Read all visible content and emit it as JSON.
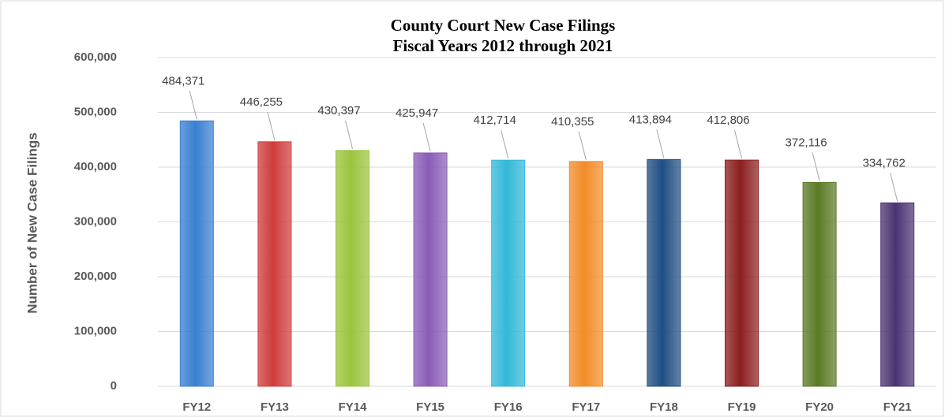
{
  "chart_data": {
    "type": "bar",
    "title": "County Court New Case Filings",
    "subtitle": "Fiscal Years 2012 through 2021",
    "y_label": "Number of New Case Filings",
    "categories": [
      "FY12",
      "FY13",
      "FY14",
      "FY15",
      "FY16",
      "FY17",
      "FY18",
      "FY19",
      "FY20",
      "FY21"
    ],
    "values": [
      484371,
      446255,
      430397,
      425947,
      412714,
      410355,
      413894,
      412806,
      372116,
      334762
    ],
    "value_labels": [
      "484,371",
      "446,255",
      "430,397",
      "425,947",
      "412,714",
      "410,355",
      "413,894",
      "412,806",
      "372,116",
      "334,762"
    ],
    "colors": [
      "#3a7fd0",
      "#d03c3c",
      "#9bc43c",
      "#8a5cb8",
      "#33b8d8",
      "#f28c28",
      "#1f4e82",
      "#8b1e1e",
      "#5a7a25",
      "#4a3472"
    ],
    "ylim": [
      0,
      600000
    ],
    "yticks": [
      0,
      {
        "value": 100000,
        "label": "100,000"
      },
      {
        "value": 200000,
        "label": "200,000"
      },
      {
        "value": 300000,
        "label": "300,000"
      },
      {
        "value": 400000,
        "label": "400,000"
      },
      {
        "value": 500000,
        "label": "500,000"
      },
      {
        "value": 600000,
        "label": "600,000"
      }
    ],
    "grid": true
  }
}
